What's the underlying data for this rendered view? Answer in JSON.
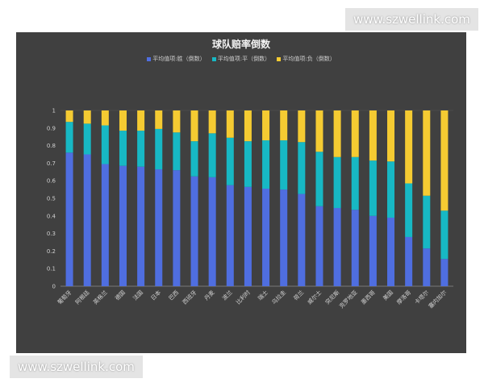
{
  "watermark_top": "www.szwellink.com",
  "watermark_bottom": "www.szwellink.com",
  "chart_data": {
    "type": "bar",
    "stacked": true,
    "title": "球队赔率倒数",
    "legend_position": "top",
    "ylim": [
      0,
      1
    ],
    "yticks": [
      "0",
      "0.1",
      "0.2",
      "0.3",
      "0.4",
      "0.5",
      "0.6",
      "0.7",
      "0.8",
      "0.9",
      "1"
    ],
    "categories": [
      "葡萄牙",
      "阿根廷",
      "英格兰",
      "德国",
      "法国",
      "日本",
      "巴西",
      "西班牙",
      "丹麦",
      "波兰",
      "比利时",
      "瑞士",
      "乌拉圭",
      "荷兰",
      "威尔士",
      "突尼斯",
      "克罗地亚",
      "墨西哥",
      "美国",
      "摩洛哥",
      "卡塔尔",
      "塞内加尔"
    ],
    "series": [
      {
        "name": "平均值项:胜（倒数）",
        "color": "#4f6ee0",
        "values": [
          0.76,
          0.75,
          0.695,
          0.685,
          0.68,
          0.665,
          0.66,
          0.625,
          0.62,
          0.575,
          0.565,
          0.555,
          0.55,
          0.525,
          0.455,
          0.445,
          0.435,
          0.4,
          0.39,
          0.28,
          0.215,
          0.155
        ]
      },
      {
        "name": "平均值项:平（倒数）",
        "color": "#17b8c4",
        "values": [
          0.175,
          0.175,
          0.22,
          0.2,
          0.205,
          0.23,
          0.215,
          0.2,
          0.25,
          0.27,
          0.26,
          0.275,
          0.28,
          0.295,
          0.31,
          0.29,
          0.3,
          0.315,
          0.32,
          0.305,
          0.3,
          0.275
        ]
      },
      {
        "name": "平均值项:负（倒数）",
        "color": "#f5cb32",
        "values": [
          0.065,
          0.075,
          0.085,
          0.115,
          0.115,
          0.105,
          0.125,
          0.175,
          0.13,
          0.155,
          0.175,
          0.17,
          0.17,
          0.18,
          0.235,
          0.265,
          0.265,
          0.285,
          0.29,
          0.415,
          0.485,
          0.57
        ]
      }
    ]
  }
}
